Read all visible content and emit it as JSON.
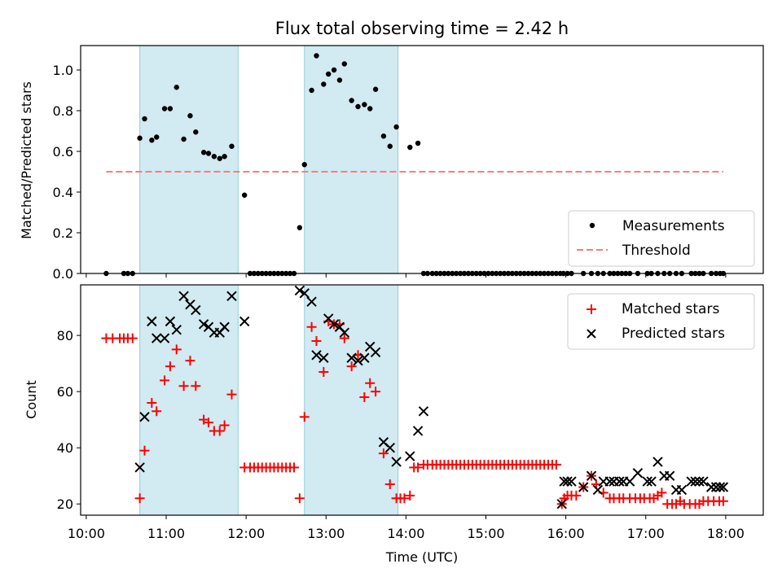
{
  "chart_data": {
    "type": "scatter",
    "title": "Flux total observing time = 2.42 h",
    "shaded_intervals_hours": [
      [
        10.67,
        11.9
      ],
      [
        12.73,
        13.9
      ]
    ],
    "shade_color": "#add8e6",
    "xlabel": "Time (UTC)",
    "xlim_hours": [
      9.93,
      18.47
    ],
    "x_ticks": [
      {
        "hour": 10,
        "label": "10:00"
      },
      {
        "hour": 11,
        "label": "11:00"
      },
      {
        "hour": 12,
        "label": "12:00"
      },
      {
        "hour": 13,
        "label": "13:00"
      },
      {
        "hour": 14,
        "label": "14:00"
      },
      {
        "hour": 15,
        "label": "15:00"
      },
      {
        "hour": 16,
        "label": "16:00"
      },
      {
        "hour": 17,
        "label": "17:00"
      },
      {
        "hour": 18,
        "label": "18:00"
      }
    ],
    "panels": [
      {
        "ylabel": "Matched/Predicted stars",
        "ylim": [
          0,
          1.12
        ],
        "y_ticks": [
          {
            "v": 0,
            "label": "0.0"
          },
          {
            "v": 0.2,
            "label": "0.2"
          },
          {
            "v": 0.4,
            "label": "0.4"
          },
          {
            "v": 0.6,
            "label": "0.6"
          },
          {
            "v": 0.8,
            "label": "0.8"
          },
          {
            "v": 1.0,
            "label": "1.0"
          }
        ],
        "legend_position": "lower-right",
        "legend_entries": [
          {
            "label": "Measurements",
            "marker": "dot",
            "color": "#000000"
          },
          {
            "label": "Threshold",
            "marker": "dash",
            "color": "#ff7b7b"
          }
        ],
        "threshold": {
          "value": 0.5,
          "x_range_hours": [
            10.25,
            17.97
          ]
        },
        "measurements": {
          "x": [
            10.25,
            10.47,
            10.52,
            10.58,
            10.67,
            10.73,
            10.82,
            10.88,
            10.98,
            11.05,
            11.13,
            11.22,
            11.3,
            11.37,
            11.47,
            11.53,
            11.6,
            11.67,
            11.73,
            11.82,
            11.98,
            12.05,
            12.1,
            12.15,
            12.2,
            12.25,
            12.3,
            12.35,
            12.4,
            12.45,
            12.5,
            12.55,
            12.6,
            12.67,
            12.73,
            12.82,
            12.88,
            12.97,
            13.03,
            13.1,
            13.17,
            13.23,
            13.32,
            13.4,
            13.48,
            13.55,
            13.62,
            13.72,
            13.8,
            13.88,
            14.05,
            14.15,
            14.22,
            14.27,
            14.33,
            14.38,
            14.43,
            14.48,
            14.53,
            14.58,
            14.63,
            14.68,
            14.73,
            14.78,
            14.83,
            14.88,
            14.93,
            14.98,
            15.03,
            15.08,
            15.13,
            15.18,
            15.23,
            15.28,
            15.33,
            15.38,
            15.43,
            15.48,
            15.53,
            15.58,
            15.63,
            15.68,
            15.73,
            15.78,
            15.83,
            15.88,
            15.93,
            15.97,
            16.02,
            16.07,
            16.22,
            16.32,
            16.4,
            16.47,
            16.55,
            16.6,
            16.65,
            16.7,
            16.75,
            16.8,
            16.9,
            17.02,
            17.07,
            17.15,
            17.23,
            17.3,
            17.38,
            17.45,
            17.57,
            17.62,
            17.67,
            17.72,
            17.82,
            17.88,
            17.93,
            17.97
          ],
          "y": [
            0,
            0,
            0,
            0,
            0.665,
            0.76,
            0.655,
            0.67,
            0.81,
            0.81,
            0.915,
            0.66,
            0.775,
            0.695,
            0.595,
            0.59,
            0.575,
            0.565,
            0.575,
            0.625,
            0.385,
            0,
            0,
            0,
            0,
            0,
            0,
            0,
            0,
            0,
            0,
            0,
            0,
            0.225,
            0.535,
            0.9,
            1.07,
            0.93,
            0.98,
            1.0,
            0.95,
            1.03,
            0.85,
            0.82,
            0.83,
            0.81,
            0.905,
            0.675,
            0.625,
            0.72,
            0.62,
            0.64,
            0,
            0,
            0,
            0,
            0,
            0,
            0,
            0,
            0,
            0,
            0,
            0,
            0,
            0,
            0,
            0,
            0,
            0,
            0,
            0,
            0,
            0,
            0,
            0,
            0,
            0,
            0,
            0,
            0,
            0,
            0,
            0,
            0,
            0,
            0,
            0,
            0,
            0,
            0,
            0,
            0,
            0,
            0,
            0,
            0,
            0,
            0,
            0,
            0,
            0,
            0,
            0,
            0,
            0,
            0,
            0,
            0,
            0,
            0,
            0,
            0,
            0,
            0,
            0
          ]
        }
      },
      {
        "ylabel": "Count",
        "ylim": [
          16,
          98
        ],
        "y_ticks": [
          {
            "v": 20,
            "label": "20"
          },
          {
            "v": 40,
            "label": "40"
          },
          {
            "v": 60,
            "label": "60"
          },
          {
            "v": 80,
            "label": "80"
          }
        ],
        "legend_position": "upper-right",
        "series": [
          {
            "name": "Matched stars",
            "marker": "plus",
            "color": "#ff0000",
            "x": [
              10.25,
              10.33,
              10.42,
              10.47,
              10.52,
              10.58,
              10.67,
              10.73,
              10.82,
              10.88,
              10.98,
              11.05,
              11.13,
              11.22,
              11.3,
              11.37,
              11.47,
              11.53,
              11.6,
              11.67,
              11.73,
              11.82,
              11.98,
              12.05,
              12.1,
              12.15,
              12.2,
              12.25,
              12.3,
              12.35,
              12.4,
              12.45,
              12.5,
              12.55,
              12.6,
              12.67,
              12.73,
              12.82,
              12.88,
              12.97,
              13.03,
              13.1,
              13.17,
              13.23,
              13.32,
              13.4,
              13.48,
              13.55,
              13.62,
              13.72,
              13.8,
              13.88,
              13.93,
              13.98,
              14.05,
              14.1,
              14.15,
              14.22,
              14.27,
              14.33,
              14.38,
              14.43,
              14.48,
              14.53,
              14.58,
              14.63,
              14.68,
              14.73,
              14.78,
              14.83,
              14.88,
              14.93,
              14.98,
              15.03,
              15.08,
              15.13,
              15.18,
              15.23,
              15.28,
              15.33,
              15.38,
              15.43,
              15.48,
              15.53,
              15.58,
              15.63,
              15.68,
              15.73,
              15.78,
              15.83,
              15.88,
              15.95,
              15.98,
              16.02,
              16.07,
              16.13,
              16.22,
              16.32,
              16.38,
              16.47,
              16.55,
              16.6,
              16.67,
              16.72,
              16.8,
              16.87,
              16.93,
              16.98,
              17.05,
              17.1,
              17.15,
              17.2,
              17.27,
              17.33,
              17.38,
              17.43,
              17.48,
              17.55,
              17.62,
              17.67,
              17.72,
              17.78,
              17.85,
              17.92,
              17.97
            ],
            "y": [
              79,
              79,
              79,
              79,
              79,
              79,
              22,
              39,
              56,
              53,
              64,
              69,
              75,
              62,
              71,
              62,
              50,
              49,
              46,
              46,
              48,
              59,
              33,
              33,
              33,
              33,
              33,
              33,
              33,
              33,
              33,
              33,
              33,
              33,
              33,
              22,
              51,
              83,
              78,
              67,
              85,
              84,
              84,
              79,
              69,
              73,
              58,
              63,
              60,
              38,
              27,
              22,
              22,
              22,
              23,
              33,
              33,
              34,
              34,
              34,
              34,
              34,
              34,
              34,
              34,
              34,
              34,
              34,
              34,
              34,
              34,
              34,
              34,
              34,
              34,
              34,
              34,
              34,
              34,
              34,
              34,
              34,
              34,
              34,
              34,
              34,
              34,
              34,
              34,
              34,
              34,
              20,
              22,
              23,
              23,
              23,
              26,
              30,
              27,
              24,
              22,
              22,
              22,
              22,
              22,
              22,
              22,
              22,
              22,
              22,
              23,
              24,
              20,
              20,
              20,
              21,
              20,
              20,
              20,
              20,
              21,
              21,
              21,
              21,
              21
            ]
          },
          {
            "name": "Predicted stars",
            "marker": "x",
            "color": "#000000",
            "x": [
              10.67,
              10.73,
              10.82,
              10.88,
              10.98,
              11.05,
              11.13,
              11.22,
              11.3,
              11.37,
              11.47,
              11.53,
              11.6,
              11.67,
              11.73,
              11.82,
              11.98,
              12.67,
              12.73,
              12.82,
              12.88,
              12.97,
              13.03,
              13.1,
              13.17,
              13.23,
              13.32,
              13.4,
              13.48,
              13.55,
              13.62,
              13.72,
              13.8,
              13.88,
              14.05,
              14.15,
              14.22,
              15.95,
              15.98,
              16.02,
              16.07,
              16.22,
              16.32,
              16.4,
              16.47,
              16.55,
              16.6,
              16.67,
              16.72,
              16.8,
              16.9,
              17.02,
              17.07,
              17.15,
              17.23,
              17.3,
              17.38,
              17.45,
              17.57,
              17.62,
              17.67,
              17.72,
              17.82,
              17.88,
              17.93,
              17.97
            ],
            "y": [
              33,
              51,
              85,
              79,
              79,
              85,
              82,
              94,
              91,
              89,
              84,
              83,
              81,
              81,
              83,
              94,
              85,
              96,
              95,
              92,
              73,
              72,
              86,
              84,
              83,
              81,
              72,
              71,
              72,
              76,
              74,
              42,
              40,
              35,
              37,
              46,
              53,
              20,
              28,
              28,
              28,
              26,
              30,
              25,
              28,
              28,
              28,
              28,
              28,
              28,
              31,
              28,
              28,
              35,
              30,
              30,
              25,
              25,
              28,
              28,
              28,
              28,
              26,
              26,
              26,
              26
            ]
          }
        ]
      }
    ]
  }
}
